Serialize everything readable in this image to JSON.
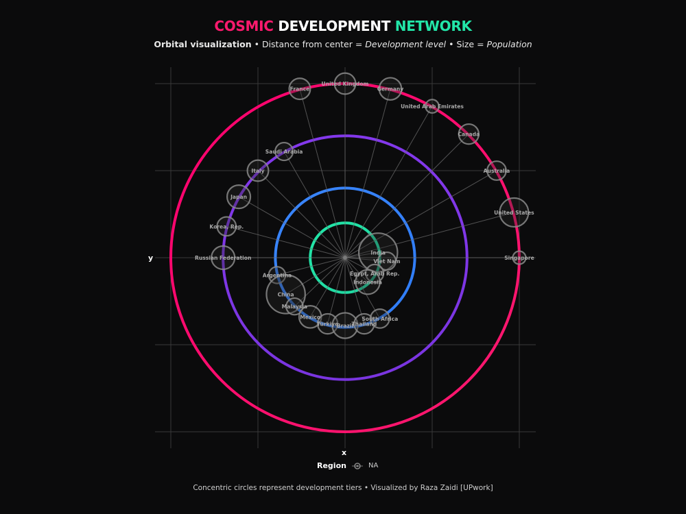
{
  "title": {
    "part1": "COSMIC",
    "part2": "DEVELOPMENT",
    "part3": "NETWORK"
  },
  "subtitle": {
    "bold": "Orbital visualization",
    "sep1": " • Distance from center = ",
    "italic1": "Development level",
    "sep2": " • Size = ",
    "italic2": "Population"
  },
  "legend": {
    "title": "Region",
    "value": "NA"
  },
  "caption": "Concentric circles represent development tiers • Visualized by Raza Zaidi [UPwork]",
  "colors": {
    "tier1": "#22e6a8",
    "tier2": "#3a86ff",
    "tier3": "#8338ec",
    "tier4": "#ff006e",
    "background": "#0b0b0c"
  },
  "chart_data": {
    "type": "scatter",
    "coordinate_system": "polar",
    "xlabel": "x",
    "ylabel": "y",
    "xlim": [
      -1.0,
      1.0
    ],
    "ylim": [
      -1.0,
      1.0
    ],
    "grid": true,
    "tier_radii": [
      0.2,
      0.4,
      0.7,
      1.0
    ],
    "points": [
      {
        "name": "India",
        "x": 0.19,
        "y": 0.03,
        "size": 1.45
      },
      {
        "name": "Viet Nam",
        "x": 0.24,
        "y": -0.02,
        "size": 0.5
      },
      {
        "name": "Egypt, Arab Rep.",
        "x": 0.17,
        "y": -0.09,
        "size": 0.5
      },
      {
        "name": "Indonesia",
        "x": 0.13,
        "y": -0.14,
        "size": 0.8
      },
      {
        "name": "Argentina",
        "x": -0.39,
        "y": -0.1,
        "size": 0.45
      },
      {
        "name": "China",
        "x": -0.34,
        "y": -0.21,
        "size": 1.45
      },
      {
        "name": "Malaysia",
        "x": -0.29,
        "y": -0.28,
        "size": 0.45
      },
      {
        "name": "Mexico",
        "x": -0.2,
        "y": -0.34,
        "size": 0.7
      },
      {
        "name": "Türkiye",
        "x": -0.1,
        "y": -0.38,
        "size": 0.6
      },
      {
        "name": "Brazil",
        "x": 0.0,
        "y": -0.39,
        "size": 0.85
      },
      {
        "name": "Thailand",
        "x": 0.11,
        "y": -0.38,
        "size": 0.6
      },
      {
        "name": "South Africa",
        "x": 0.2,
        "y": -0.35,
        "size": 0.55
      },
      {
        "name": "Russian Federation",
        "x": -0.7,
        "y": 0.0,
        "size": 0.75
      },
      {
        "name": "Korea, Rep.",
        "x": -0.68,
        "y": 0.18,
        "size": 0.55
      },
      {
        "name": "Japan",
        "x": -0.61,
        "y": 0.35,
        "size": 0.75
      },
      {
        "name": "Italy",
        "x": -0.5,
        "y": 0.5,
        "size": 0.65
      },
      {
        "name": "Saudi Arabia",
        "x": -0.35,
        "y": 0.61,
        "size": 0.5
      },
      {
        "name": "France",
        "x": -0.26,
        "y": 0.97,
        "size": 0.65
      },
      {
        "name": "United Kingdom",
        "x": 0.0,
        "y": 1.0,
        "size": 0.65
      },
      {
        "name": "Germany",
        "x": 0.26,
        "y": 0.97,
        "size": 0.7
      },
      {
        "name": "United Arab Emirates",
        "x": 0.5,
        "y": 0.87,
        "size": 0.3
      },
      {
        "name": "Canada",
        "x": 0.71,
        "y": 0.71,
        "size": 0.6
      },
      {
        "name": "Australia",
        "x": 0.87,
        "y": 0.5,
        "size": 0.55
      },
      {
        "name": "United States",
        "x": 0.97,
        "y": 0.26,
        "size": 1.0
      },
      {
        "name": "Singapore",
        "x": 1.0,
        "y": 0.0,
        "size": 0.28
      }
    ]
  }
}
